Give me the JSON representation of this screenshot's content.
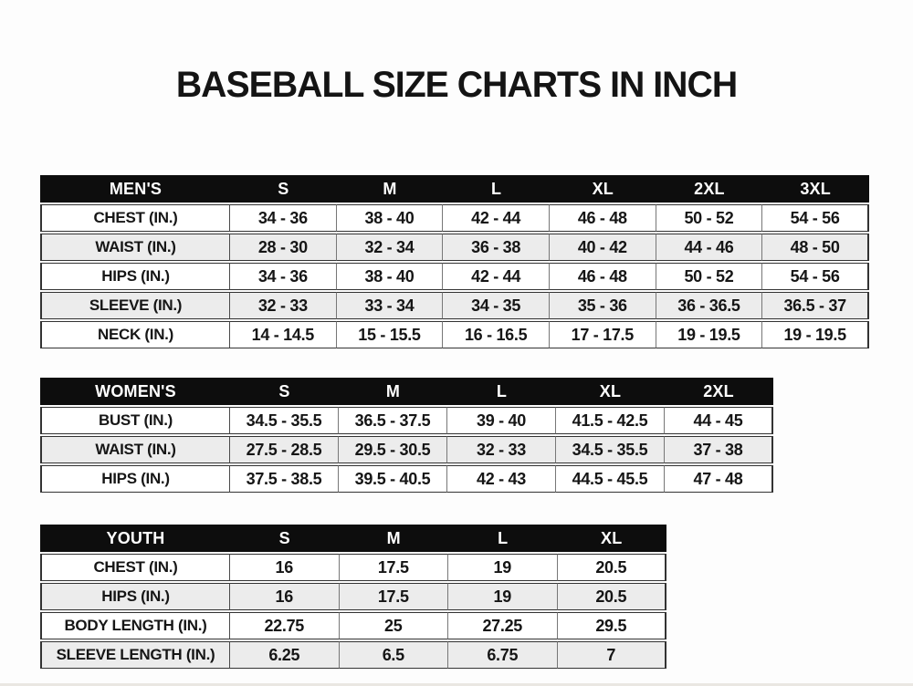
{
  "page": {
    "title": "BASEBALL SIZE CHARTS IN INCH"
  },
  "colors": {
    "header_bg": "#0d0d0d",
    "header_text": "#ffffff",
    "row_bg": "#ffffff",
    "row_alt_bg": "#ececec",
    "border_dark": "#333333",
    "border_light": "#777777",
    "text": "#161616",
    "page_bg": "#fdfdfd"
  },
  "chart_data": [
    {
      "type": "table",
      "title": "MEN'S",
      "columns": [
        "S",
        "M",
        "L",
        "XL",
        "2XL",
        "3XL"
      ],
      "rows": [
        {
          "label": "CHEST (IN.)",
          "values": [
            "34 - 36",
            "38 - 40",
            "42 - 44",
            "46 - 48",
            "50 - 52",
            "54 - 56"
          ]
        },
        {
          "label": "WAIST (IN.)",
          "values": [
            "28 - 30",
            "32 - 34",
            "36 - 38",
            "40 - 42",
            "44 - 46",
            "48 - 50"
          ]
        },
        {
          "label": "HIPS (IN.)",
          "values": [
            "34 - 36",
            "38 - 40",
            "42 - 44",
            "46 - 48",
            "50 - 52",
            "54 - 56"
          ]
        },
        {
          "label": "SLEEVE (IN.)",
          "values": [
            "32 - 33",
            "33 - 34",
            "34 - 35",
            "35 - 36",
            "36 - 36.5",
            "36.5 - 37"
          ]
        },
        {
          "label": "NECK (IN.)",
          "values": [
            "14 - 14.5",
            "15 - 15.5",
            "16 - 16.5",
            "17 - 17.5",
            "19 - 19.5",
            "19 - 19.5"
          ]
        }
      ]
    },
    {
      "type": "table",
      "title": "WOMEN'S",
      "columns": [
        "S",
        "M",
        "L",
        "XL",
        "2XL"
      ],
      "rows": [
        {
          "label": "BUST (IN.)",
          "values": [
            "34.5 - 35.5",
            "36.5 - 37.5",
            "39 - 40",
            "41.5 - 42.5",
            "44 - 45"
          ]
        },
        {
          "label": "WAIST (IN.)",
          "values": [
            "27.5 - 28.5",
            "29.5 - 30.5",
            "32 - 33",
            "34.5 - 35.5",
            "37 - 38"
          ]
        },
        {
          "label": "HIPS (IN.)",
          "values": [
            "37.5 - 38.5",
            "39.5 - 40.5",
            "42 - 43",
            "44.5 - 45.5",
            "47 - 48"
          ]
        }
      ]
    },
    {
      "type": "table",
      "title": "YOUTH",
      "columns": [
        "S",
        "M",
        "L",
        "XL"
      ],
      "rows": [
        {
          "label": "CHEST (IN.)",
          "values": [
            "16",
            "17.5",
            "19",
            "20.5"
          ]
        },
        {
          "label": "HIPS (IN.)",
          "values": [
            "16",
            "17.5",
            "19",
            "20.5"
          ]
        },
        {
          "label": "BODY LENGTH (IN.)",
          "values": [
            "22.75",
            "25",
            "27.25",
            "29.5"
          ]
        },
        {
          "label": "SLEEVE LENGTH (IN.)",
          "values": [
            "6.25",
            "6.5",
            "6.75",
            "7"
          ]
        }
      ]
    }
  ]
}
